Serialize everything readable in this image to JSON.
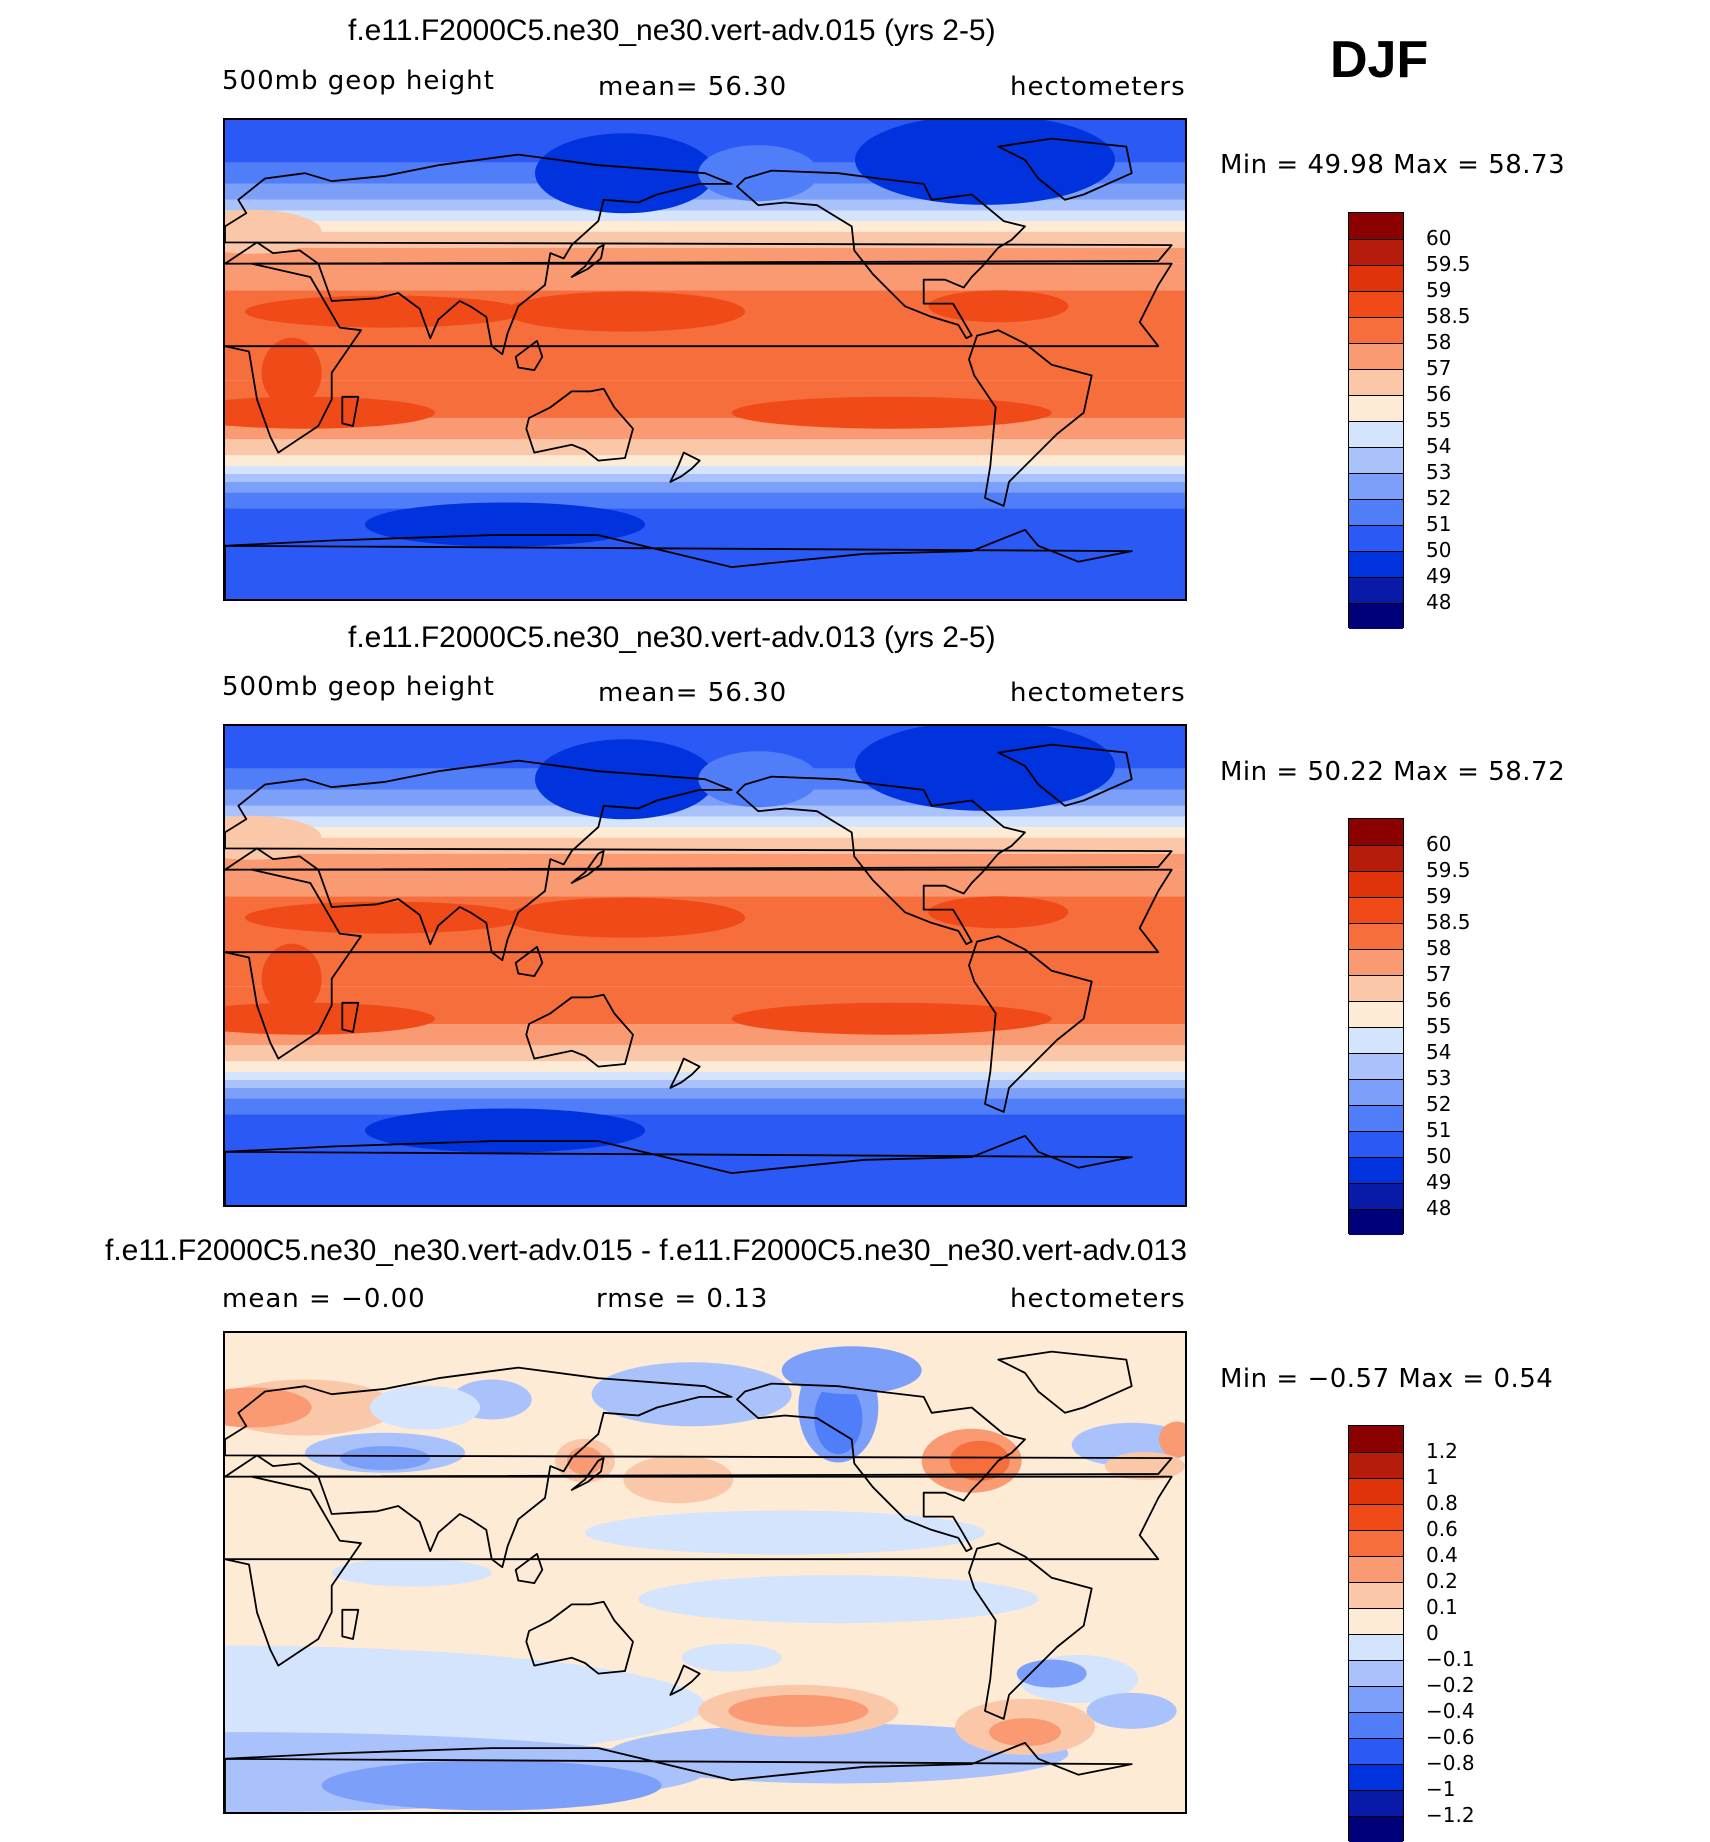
{
  "season": "DJF",
  "colors": {
    "n12": "#00007a",
    "n10": "#0a1aa8",
    "n9": "#0033dd",
    "n8": "#2b59f5",
    "n7": "#4f7ef8",
    "n6": "#7c9ff9",
    "n5": "#a9c2fb",
    "n4": "#d4e4fc",
    "p1": "#fdebd6",
    "p2": "#fbc7a9",
    "p3": "#f99a72",
    "p4": "#f56e3c",
    "p5": "#ef4a17",
    "p6": "#e0330a",
    "p7": "#b71c0a",
    "p8": "#8b0000",
    "coast": "#000000"
  },
  "chart_data": [
    {
      "type": "heatmap",
      "title": "f.e11.F2000C5.ne30_ne30.vert-adv.015 (yrs 2-5)",
      "left_label": "500mb  geop  height",
      "center_label": "mean=   56.30",
      "right_label": "hectometers",
      "min_max": "Min  =    49.98  Max  =    58.73",
      "min": 49.98,
      "max": 58.73,
      "mean": 56.3,
      "colorbar_levels": [
        "60",
        "59.5",
        "59",
        "58.5",
        "58",
        "57",
        "56",
        "55",
        "54",
        "53",
        "52",
        "51",
        "50",
        "49",
        "48"
      ],
      "colorbar_colors": [
        "p8",
        "p7",
        "p6",
        "p5",
        "p4",
        "p3",
        "p2",
        "p1",
        "n4",
        "n5",
        "n6",
        "n7",
        "n8",
        "n9",
        "n10",
        "n12"
      ],
      "projection": "cylindrical equidistant, centered on dateline"
    },
    {
      "type": "heatmap",
      "title": "f.e11.F2000C5.ne30_ne30.vert-adv.013 (yrs 2-5)",
      "left_label": "500mb  geop  height",
      "center_label": "mean=   56.30",
      "right_label": "hectometers",
      "min_max": "Min  =    50.22  Max  =    58.72",
      "min": 50.22,
      "max": 58.72,
      "mean": 56.3,
      "colorbar_levels": [
        "60",
        "59.5",
        "59",
        "58.5",
        "58",
        "57",
        "56",
        "55",
        "54",
        "53",
        "52",
        "51",
        "50",
        "49",
        "48"
      ],
      "colorbar_colors": [
        "p8",
        "p7",
        "p6",
        "p5",
        "p4",
        "p3",
        "p2",
        "p1",
        "n4",
        "n5",
        "n6",
        "n7",
        "n8",
        "n9",
        "n10",
        "n12"
      ],
      "projection": "cylindrical equidistant, centered on dateline"
    },
    {
      "type": "heatmap",
      "title": "f.e11.F2000C5.ne30_ne30.vert-adv.015 - f.e11.F2000C5.ne30_ne30.vert-adv.013",
      "left_label": "mean  =    −0.00",
      "center_label": "rmse  =    0.13",
      "right_label": "hectometers",
      "min_max": "Min  =    −0.57  Max  =     0.54",
      "min": -0.57,
      "max": 0.54,
      "mean": -0.0,
      "rmse": 0.13,
      "colorbar_levels": [
        "1.2",
        "1",
        "0.8",
        "0.6",
        "0.4",
        "0.2",
        "0.1",
        "0",
        "−0.1",
        "−0.2",
        "−0.4",
        "−0.6",
        "−0.8",
        "−1",
        "−1.2"
      ],
      "colorbar_colors": [
        "p8",
        "p7",
        "p6",
        "p5",
        "p4",
        "p3",
        "p2",
        "p1",
        "n4",
        "n5",
        "n6",
        "n7",
        "n8",
        "n9",
        "n10",
        "n12"
      ],
      "projection": "cylindrical equidistant, centered on dateline"
    }
  ]
}
